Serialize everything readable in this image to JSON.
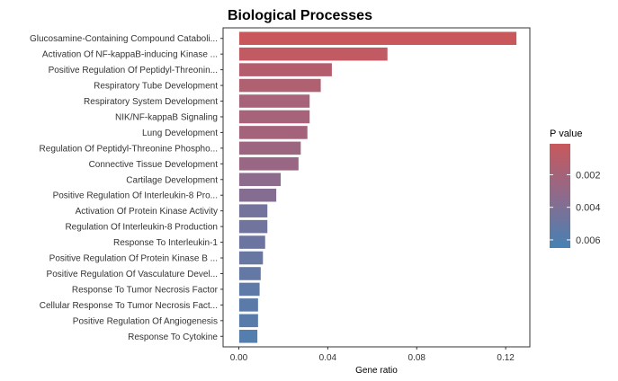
{
  "chart_data": {
    "type": "bar",
    "orientation": "horizontal",
    "title": "Biological Processes",
    "xlabel": "Gene ratio",
    "ylabel": "",
    "xlim": [
      0,
      0.1285
    ],
    "xticks": [
      0.0,
      0.04,
      0.08,
      0.12
    ],
    "xtick_labels": [
      "0.00",
      "0.04",
      "0.08",
      "0.12"
    ],
    "grid": false,
    "categories": [
      "Glucosamine-Containing Compound Cataboli...",
      "Activation Of NF-kappaB-inducing Kinase ...",
      "Positive Regulation Of Peptidyl-Threonin...",
      "Respiratory Tube Development",
      "Respiratory System Development",
      "NIK/NF-kappaB Signaling",
      "Lung Development",
      "Regulation Of Peptidyl-Threonine Phospho...",
      "Connective Tissue Development",
      "Cartilage Development",
      "Positive Regulation Of Interleukin-8 Pro...",
      "Activation Of Protein Kinase Activity",
      "Regulation Of Interleukin-8 Production",
      "Response To Interleukin-1",
      "Positive Regulation Of Protein Kinase B ...",
      "Positive Regulation Of Vasculature Devel...",
      "Response To Tumor Necrosis Factor",
      "Cellular Response To Tumor Necrosis Fact...",
      "Positive Regulation Of Angiogenesis",
      "Response To Cytokine"
    ],
    "values": [
      0.125,
      0.067,
      0.042,
      0.037,
      0.032,
      0.032,
      0.031,
      0.028,
      0.027,
      0.019,
      0.017,
      0.013,
      0.013,
      0.012,
      0.011,
      0.01,
      0.0095,
      0.0088,
      0.0088,
      0.0085
    ],
    "color_values": [
      0.0001,
      0.0005,
      0.0012,
      0.0015,
      0.002,
      0.002,
      0.0021,
      0.0025,
      0.0027,
      0.0034,
      0.0037,
      0.0045,
      0.0046,
      0.0048,
      0.005,
      0.0052,
      0.0054,
      0.0056,
      0.0057,
      0.0059
    ],
    "legend": {
      "title": "P value",
      "position": "right",
      "range": [
        0.0001,
        0.0065
      ],
      "ticks": [
        0.002,
        0.004,
        0.006
      ],
      "tick_labels": [
        "0.002",
        "0.004",
        "0.006"
      ],
      "low_color": "#c8585c",
      "high_color": "#4682b4"
    },
    "bar_outline": "#ffffff",
    "panel_border": "#333333"
  }
}
